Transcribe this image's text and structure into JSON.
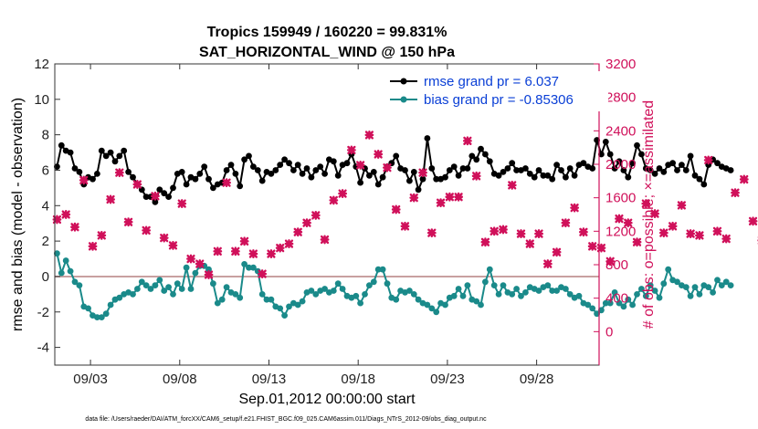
{
  "chart_data": {
    "type": "line",
    "title": "Tropics 159949 / 160220 = 99.831%",
    "subtitle": "SAT_HORIZONTAL_WIND @ 150 hPa",
    "xlabel": "Sep.01,2012 00:00:00 start",
    "ylabel_left": "rmse and bias (model - observation)",
    "ylabel_right": "# of obs: o=possible; ×=assimilated",
    "xlim": [
      1,
      31.5
    ],
    "ylim_left": [
      -5,
      12
    ],
    "ylim_right": [
      -400,
      3200
    ],
    "x_ticks": [
      3,
      8,
      13,
      18,
      23,
      28
    ],
    "x_tick_labels": [
      "09/03",
      "09/08",
      "09/13",
      "09/18",
      "09/23",
      "09/28"
    ],
    "y_left_ticks": [
      -4,
      -2,
      0,
      2,
      4,
      6,
      8,
      10,
      12
    ],
    "y_left_tick_labels": [
      "-4",
      "-2",
      "0",
      "2",
      "4",
      "6",
      "8",
      "10",
      "12"
    ],
    "y_right_ticks": [
      0,
      400,
      800,
      1200,
      1600,
      2000,
      2400,
      2800,
      3200
    ],
    "y_right_tick_labels": [
      "0",
      "400",
      "800",
      "1200",
      "1600",
      "2000",
      "2400",
      "2800",
      "3200"
    ],
    "zero_line": 0,
    "colors": {
      "rmse": "#000000",
      "bias": "#1a8a8a",
      "obs": "#d0105a",
      "zero": "#c8a0a0"
    },
    "series": [
      {
        "name": "rmse grand pr = 6.037",
        "axis": "left",
        "style": "line-markers",
        "x_start": 1.125,
        "x_step": 0.25,
        "values": [
          6.2,
          7.4,
          7.1,
          7.0,
          6.1,
          5.9,
          5.2,
          5.6,
          5.5,
          5.8,
          7.1,
          6.8,
          7.0,
          6.5,
          6.8,
          7.1,
          5.9,
          5.6,
          5.2,
          4.9,
          4.5,
          4.5,
          4.2,
          4.9,
          4.7,
          4.5,
          5.0,
          5.8,
          5.9,
          5.2,
          5.6,
          5.5,
          5.8,
          6.2,
          5.5,
          5.0,
          5.2,
          5.3,
          6.0,
          6.3,
          5.8,
          5.1,
          6.6,
          6.8,
          6.2,
          6.0,
          5.4,
          5.9,
          5.8,
          6.0,
          6.3,
          6.6,
          6.4,
          6.0,
          6.3,
          5.8,
          6.1,
          5.6,
          6.0,
          6.2,
          5.8,
          6.6,
          6.5,
          5.7,
          6.3,
          6.4,
          6.9,
          6.2,
          5.3,
          6.1,
          5.7,
          5.9,
          5.2,
          5.6,
          6.2,
          6.4,
          6.8,
          6.1,
          6.0,
          5.4,
          5.9,
          4.9,
          5.5,
          7.8,
          6.1,
          5.5,
          5.5,
          5.6,
          6.0,
          6.2,
          5.7,
          6.1,
          6.1,
          6.8,
          6.6,
          7.2,
          6.9,
          6.5,
          5.8,
          5.7,
          5.9,
          6.1,
          6.4,
          6.0,
          6.0,
          6.1,
          5.8,
          5.6,
          6.0,
          5.7,
          5.7,
          5.5,
          6.3,
          6.0,
          5.6,
          6.1,
          5.7,
          6.3,
          6.4,
          6.2,
          6.1,
          7.7,
          6.9,
          7.6,
          6.9,
          6.1,
          6.5,
          6.0,
          5.6,
          6.4,
          7.4,
          6.9,
          6.1,
          6.0,
          5.8,
          6.1,
          5.9,
          6.3,
          6.4,
          6.0,
          6.3,
          6.0,
          6.8,
          5.7,
          5.5,
          5.2,
          6.3,
          6.6,
          6.4,
          6.2,
          6.1,
          6.0
        ]
      },
      {
        "name": "bias grand pr = -0.85306",
        "axis": "left",
        "style": "line-markers",
        "x_start": 1.125,
        "x_step": 0.25,
        "values": [
          1.3,
          0.2,
          0.9,
          0.3,
          -0.3,
          -0.5,
          -1.7,
          -1.8,
          -2.2,
          -2.3,
          -2.3,
          -2.1,
          -1.6,
          -1.3,
          -1.2,
          -1.0,
          -0.9,
          -1.0,
          -0.7,
          -0.3,
          -0.5,
          -0.7,
          -0.5,
          -0.2,
          -0.8,
          -0.6,
          -1.0,
          -0.4,
          -0.7,
          0.5,
          -0.7,
          0.2,
          0.6,
          0.6,
          0.4,
          -0.4,
          -1.5,
          -1.3,
          -0.6,
          -0.9,
          -1.0,
          -1.2,
          0.7,
          0.5,
          0.5,
          0.3,
          -1.0,
          -1.3,
          -1.3,
          -1.7,
          -1.8,
          -2.2,
          -1.7,
          -1.5,
          -1.6,
          -1.4,
          -0.9,
          -0.8,
          -1.0,
          -0.8,
          -0.7,
          -0.9,
          -0.8,
          -0.4,
          -0.7,
          -1.1,
          -1.2,
          -1.1,
          -1.5,
          -1.0,
          -0.5,
          -0.3,
          0.4,
          0.4,
          -0.4,
          -1.2,
          -1.3,
          -0.8,
          -0.9,
          -0.8,
          -1.0,
          -1.3,
          -1.5,
          -1.6,
          -1.8,
          -2.0,
          -1.5,
          -1.6,
          -1.2,
          -1.1,
          -0.7,
          -1.1,
          -0.5,
          -1.3,
          -1.4,
          -1.6,
          -0.3,
          0.4,
          -0.5,
          -1.0,
          -0.5,
          -0.9,
          -1.0,
          -0.7,
          -1.1,
          -0.9,
          -0.6,
          -0.7,
          -0.8,
          -0.6,
          -0.5,
          -0.8,
          -0.8,
          -0.6,
          -0.7,
          -1.0,
          -1.2,
          -1.1,
          -1.5,
          -1.6,
          -1.8,
          -2.1,
          -1.9,
          -1.5,
          -1.5,
          -0.9,
          -1.5,
          -1.7,
          -1.3,
          -1.6,
          -1.0,
          -0.7,
          -1.1,
          -0.5,
          -0.8,
          -1.2,
          -0.4,
          0.4,
          -0.2,
          -0.3,
          -0.5,
          -0.6,
          -1.1,
          -0.6,
          -1.0,
          -0.5,
          -0.6,
          -0.9,
          -0.2,
          -0.5,
          -0.3,
          -0.5
        ]
      },
      {
        "name": "assimilated obs",
        "axis": "right",
        "style": "markers-x",
        "x_start": 1.125,
        "x_step": 0.5,
        "values": [
          1340,
          1400,
          1250,
          1810,
          1020,
          1150,
          1580,
          1900,
          1310,
          1760,
          1210,
          1620,
          1120,
          1030,
          1530,
          870,
          810,
          680,
          960,
          1780,
          960,
          1080,
          930,
          690,
          930,
          1000,
          1050,
          1190,
          1300,
          1390,
          1100,
          1570,
          1650,
          2170,
          1990,
          2350,
          2120,
          1960,
          1460,
          1260,
          1600,
          1900,
          1180,
          1540,
          1610,
          1610,
          2280,
          1860,
          1070,
          1200,
          1220,
          1750,
          1170,
          1050,
          1170,
          810,
          950,
          1300,
          1480,
          1190,
          1020,
          1000,
          840,
          1350,
          1300,
          1070,
          1530,
          1410,
          1180,
          1260,
          1510,
          1170,
          1150,
          2050,
          1200,
          1110,
          1660,
          1820,
          1320,
          1090,
          2060,
          1500,
          2400,
          1730,
          1040,
          1420,
          1550,
          1730,
          1380,
          1200,
          1820,
          1300,
          1670,
          1750,
          1910,
          1550,
          1630,
          1650,
          1200,
          1000,
          1040,
          -1
        ]
      }
    ]
  },
  "legend": [
    {
      "label": "rmse grand pr = 6.037"
    },
    {
      "label": "bias grand pr = -0.85306"
    }
  ],
  "footnote": "data file: /Users/raeder/DAI/ATM_forcXX/CAM6_setup/f.e21.FHIST_BGC.f09_025.CAM6assim.011/Diags_NTrS_2012-09/obs_diag_output.nc"
}
